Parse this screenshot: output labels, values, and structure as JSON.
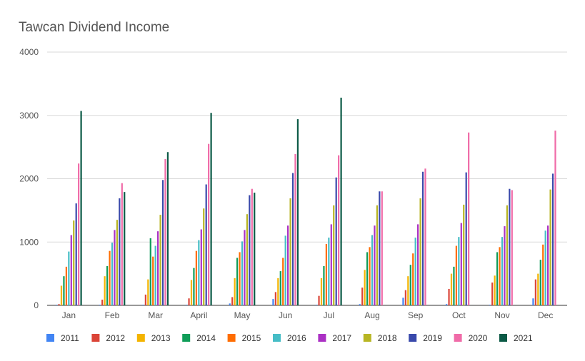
{
  "chart_data": {
    "type": "bar",
    "title": "Tawcan Dividend Income",
    "xlabel": "",
    "ylabel": "",
    "ylim": [
      0,
      4000
    ],
    "yticks": [
      0,
      1000,
      2000,
      3000,
      4000
    ],
    "grid": true,
    "legend_position": "bottom",
    "categories": [
      "Jan",
      "Feb",
      "Mar",
      "April",
      "May",
      "Jun",
      "Jul",
      "Aug",
      "Sep",
      "Oct",
      "Nov",
      "Dec"
    ],
    "series": [
      {
        "name": "2011",
        "color": "#4285f4",
        "values": [
          10,
          10,
          10,
          10,
          30,
          100,
          10,
          20,
          120,
          20,
          10,
          110
        ]
      },
      {
        "name": "2012",
        "color": "#db4437",
        "values": [
          20,
          90,
          170,
          110,
          130,
          210,
          150,
          280,
          240,
          260,
          360,
          410
        ]
      },
      {
        "name": "2013",
        "color": "#f4b400",
        "values": [
          310,
          460,
          410,
          400,
          430,
          430,
          430,
          560,
          460,
          500,
          470,
          500
        ]
      },
      {
        "name": "2014",
        "color": "#0f9d58",
        "values": [
          460,
          620,
          1060,
          590,
          750,
          540,
          620,
          840,
          640,
          610,
          840,
          720
        ]
      },
      {
        "name": "2015",
        "color": "#ff6d01",
        "values": [
          610,
          860,
          770,
          860,
          840,
          750,
          970,
          920,
          820,
          940,
          920,
          960
        ]
      },
      {
        "name": "2016",
        "color": "#46bdc6",
        "values": [
          850,
          990,
          940,
          1030,
          1010,
          1100,
          1070,
          1110,
          1070,
          1080,
          1080,
          1180
        ]
      },
      {
        "name": "2017",
        "color": "#ab30c4",
        "values": [
          1110,
          1190,
          1170,
          1200,
          1190,
          1260,
          1280,
          1260,
          1280,
          1300,
          1250,
          1260
        ]
      },
      {
        "name": "2018",
        "color": "#b8b624",
        "values": [
          1340,
          1350,
          1430,
          1530,
          1440,
          1690,
          1580,
          1580,
          1690,
          1590,
          1580,
          1830
        ]
      },
      {
        "name": "2019",
        "color": "#3949ab",
        "values": [
          1610,
          1690,
          1980,
          1910,
          1740,
          2090,
          2020,
          1800,
          2110,
          2100,
          1840,
          2080
        ]
      },
      {
        "name": "2020",
        "color": "#f06ba8",
        "values": [
          2240,
          1930,
          2310,
          2550,
          1840,
          2390,
          2370,
          1800,
          2160,
          2730,
          1820,
          2760
        ]
      },
      {
        "name": "2021",
        "color": "#0b5a46",
        "values": [
          3070,
          1790,
          2420,
          3040,
          1780,
          2940,
          3280,
          null,
          null,
          null,
          null,
          null
        ]
      }
    ]
  }
}
